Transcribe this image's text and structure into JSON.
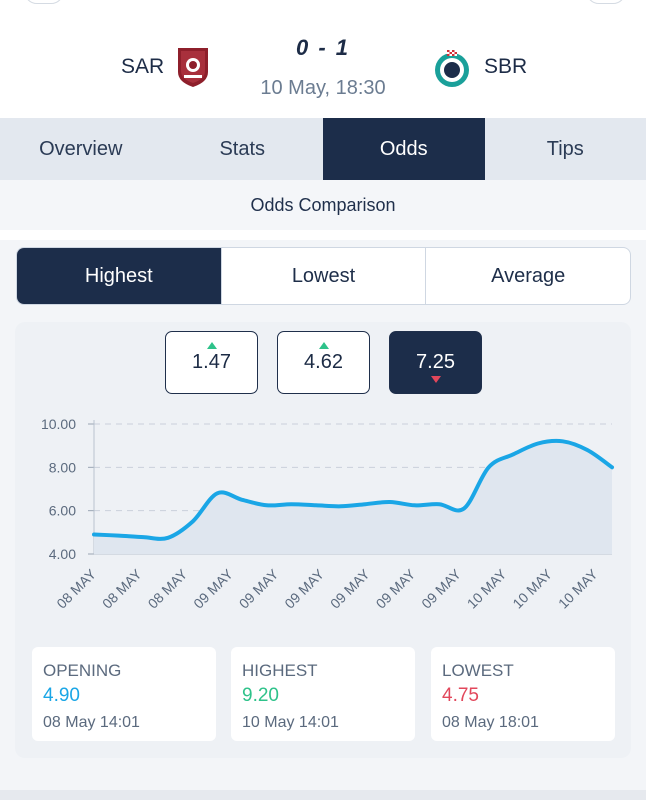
{
  "match": {
    "home_team": "SAR",
    "away_team": "SBR",
    "score": "0 - 1",
    "kickoff": "10 May, 18:30"
  },
  "tabs": [
    "Overview",
    "Stats",
    "Odds",
    "Tips"
  ],
  "active_tab": "Odds",
  "section_title": "Odds Comparison",
  "filters": [
    "Highest",
    "Lowest",
    "Average"
  ],
  "active_filter": "Highest",
  "odds_buttons": [
    {
      "value": "1.47",
      "trend": "up"
    },
    {
      "value": "4.62",
      "trend": "up"
    },
    {
      "value": "7.25",
      "trend": "down"
    }
  ],
  "colors": {
    "primary": "#1c2d4a",
    "line": "#1aa6e6",
    "up": "#2ec28a",
    "down": "#e2475b",
    "opening": "#1aa6e6",
    "highest": "#2ec28a",
    "lowest": "#e2475b"
  },
  "chart_data": {
    "type": "area",
    "title": "",
    "xlabel": "",
    "ylabel": "",
    "ylim": [
      4,
      10
    ],
    "yticks": [
      "10.00",
      "8.00",
      "6.00",
      "4.00"
    ],
    "xticks": [
      "08 MAY",
      "08 MAY",
      "08 MAY",
      "09 MAY",
      "09 MAY",
      "09 MAY",
      "09 MAY",
      "09 MAY",
      "09 MAY",
      "10 MAY",
      "10 MAY",
      "10 MAY"
    ],
    "grid": true,
    "series": [
      {
        "values": [
          4.9,
          4.85,
          4.78,
          4.75,
          5.5,
          6.8,
          6.5,
          6.25,
          6.3,
          6.25,
          6.2,
          6.3,
          6.4,
          6.25,
          6.3,
          6.1,
          8.0,
          8.6,
          9.1,
          9.2,
          8.8,
          8.0
        ]
      }
    ]
  },
  "stats": [
    {
      "label": "OPENING",
      "value": "4.90",
      "time": "08 May 14:01",
      "color": "#1aa6e6"
    },
    {
      "label": "HIGHEST",
      "value": "9.20",
      "time": "10 May 14:01",
      "color": "#2ec28a"
    },
    {
      "label": "LOWEST",
      "value": "4.75",
      "time": "08 May 18:01",
      "color": "#e2475b"
    }
  ]
}
